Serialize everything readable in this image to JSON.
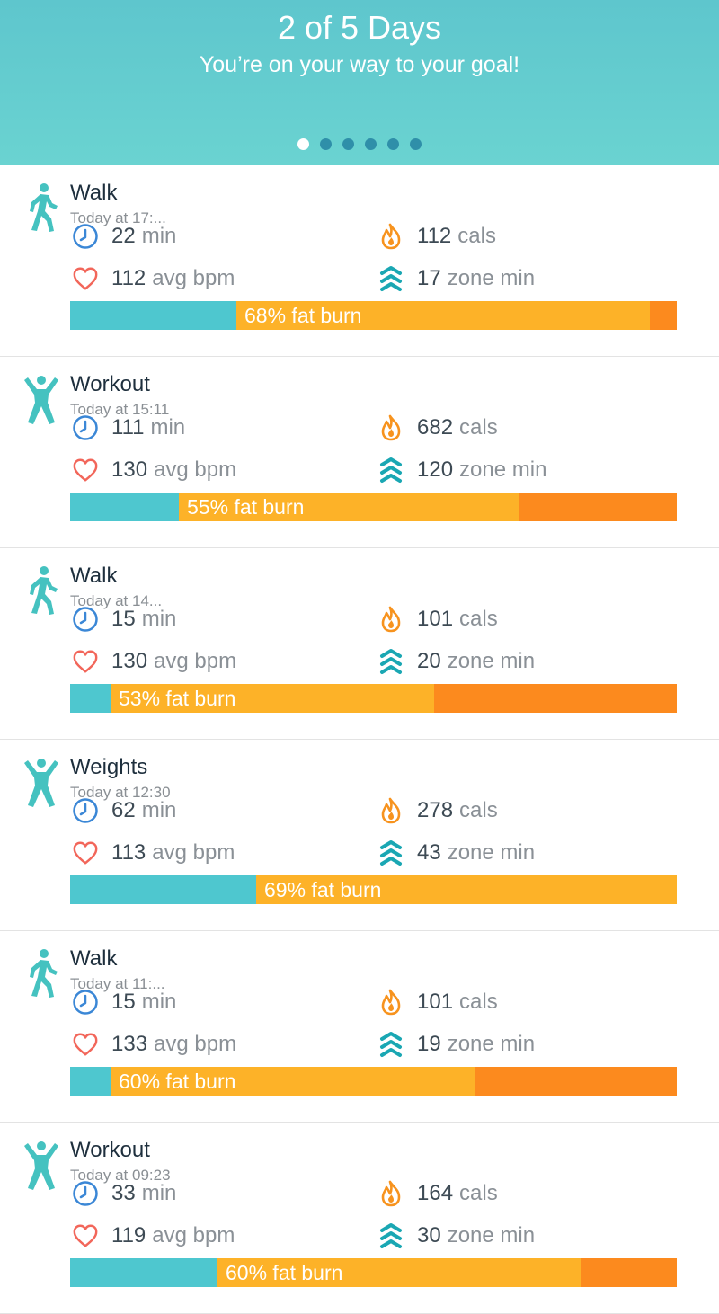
{
  "header": {
    "title": "2 of 5 Days",
    "subtitle": "You’re on your way to your goal!",
    "dots_total": 6,
    "dots_active_index": 0
  },
  "colors": {
    "header_teal": "#5ec6cd",
    "bar_teal": "#4ec7cf",
    "bar_yellow": "#fdb228",
    "bar_orange": "#fc8a1e",
    "clock_blue": "#3b87d6",
    "heart_red": "#f2665a",
    "flame_orange": "#f7931e",
    "zone_teal": "#1aa7b3"
  },
  "activities": [
    {
      "name": "Walk",
      "time": "Today at 17:...",
      "icon": "walk-icon",
      "duration": "22",
      "duration_unit": "min",
      "calories": "112",
      "calories_unit": "cals",
      "bpm": "112",
      "bpm_unit": "avg bpm",
      "zone": "17",
      "zone_unit": "zone min",
      "fat_burn_label": "68% fat burn",
      "bar_fractions": [
        0.274,
        0.681,
        0.045
      ]
    },
    {
      "name": "Workout",
      "time": "Today at 15:11",
      "icon": "workout-icon",
      "duration": "111",
      "duration_unit": "min",
      "calories": "682",
      "calories_unit": "cals",
      "bpm": "130",
      "bpm_unit": "avg bpm",
      "zone": "120",
      "zone_unit": "zone min",
      "fat_burn_label": "55% fat burn",
      "bar_fractions": [
        0.179,
        0.561,
        0.26
      ]
    },
    {
      "name": "Walk",
      "time": "Today at 14...",
      "icon": "walk-icon",
      "duration": "15",
      "duration_unit": "min",
      "calories": "101",
      "calories_unit": "cals",
      "bpm": "130",
      "bpm_unit": "avg bpm",
      "zone": "20",
      "zone_unit": "zone min",
      "fat_burn_label": "53% fat burn",
      "bar_fractions": [
        0.067,
        0.533,
        0.4
      ]
    },
    {
      "name": "Weights",
      "time": "Today at 12:30",
      "icon": "workout-icon",
      "duration": "62",
      "duration_unit": "min",
      "calories": "278",
      "calories_unit": "cals",
      "bpm": "113",
      "bpm_unit": "avg bpm",
      "zone": "43",
      "zone_unit": "zone min",
      "fat_burn_label": "69% fat burn",
      "bar_fractions": [
        0.307,
        0.693,
        0
      ]
    },
    {
      "name": "Walk",
      "time": "Today at 11:...",
      "icon": "walk-icon",
      "duration": "15",
      "duration_unit": "min",
      "calories": "101",
      "calories_unit": "cals",
      "bpm": "133",
      "bpm_unit": "avg bpm",
      "zone": "19",
      "zone_unit": "zone min",
      "fat_burn_label": "60% fat burn",
      "bar_fractions": [
        0.067,
        0.6,
        0.333
      ]
    },
    {
      "name": "Workout",
      "time": "Today at 09:23",
      "icon": "workout-icon",
      "duration": "33",
      "duration_unit": "min",
      "calories": "164",
      "calories_unit": "cals",
      "bpm": "119",
      "bpm_unit": "avg bpm",
      "zone": "30",
      "zone_unit": "zone min",
      "fat_burn_label": "60% fat burn",
      "bar_fractions": [
        0.243,
        0.6,
        0.157
      ]
    }
  ]
}
